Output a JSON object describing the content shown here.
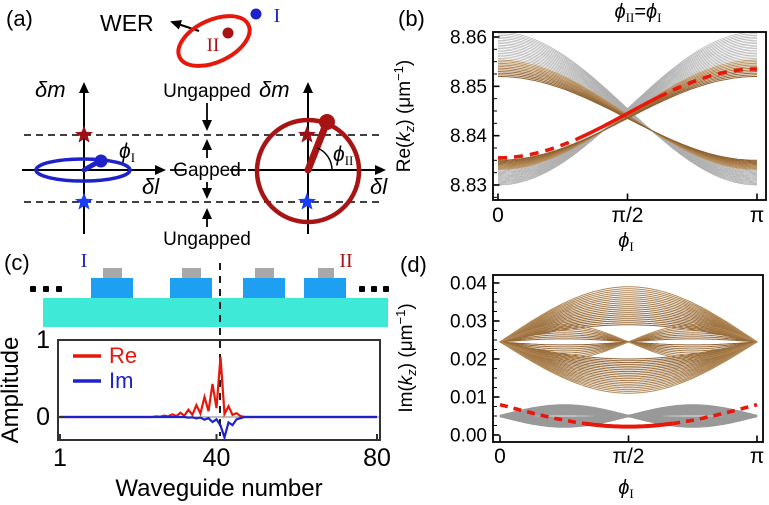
{
  "colors": {
    "blue": "#1e22cb",
    "star_blue": "#1a3dfc",
    "dark_red": "#a81414",
    "star_red": "#9c1016",
    "bright_red": "#e7170c",
    "brown": "#8d5f2e",
    "brown_light": "#c09a68",
    "gray_line": "#aeaeae",
    "gray_band": "#999999",
    "slab": "#3fe9d7",
    "waveguide": "#1e9ff2",
    "cap": "#a8a8a8",
    "axis": "#000000"
  },
  "panel_a": {
    "tag": "(a)",
    "wer": "WER",
    "dot_I": "I",
    "dot_II": "II",
    "left": {
      "axis_y": "δm",
      "axis_x": "δl",
      "phi": "ϕ",
      "phi_sub": "I"
    },
    "right": {
      "axis_y": "δm",
      "axis_x": "δl",
      "phi": "ϕ",
      "phi_sub": "II"
    },
    "region_top": "Ungapped",
    "region_mid": "Gapped",
    "region_bottom": "Ungapped"
  },
  "panel_b": {
    "tag": "(b)"
  },
  "panel_c": {
    "tag": "(c)",
    "label_I": "I",
    "label_II": "II"
  },
  "panel_d": {
    "tag": "(d)"
  },
  "chart_data": [
    {
      "id": "b",
      "type": "line",
      "title": {
        "phi_a": "ϕ",
        "sub_a": "II",
        "eq": "=",
        "phi_b": "ϕ",
        "sub_b": "I"
      },
      "xlabel": {
        "phi": "ϕ",
        "sub": "I"
      },
      "ylabel": {
        "p1": "Re(",
        "k": "k",
        "sub": "z",
        "p2": ") (μm",
        "sup": "−1",
        "p3": ")"
      },
      "ylim": [
        8.827,
        8.861
      ],
      "xlim_units_of_pi": [
        0,
        1
      ],
      "xticks": [
        {
          "t": 0,
          "label": "0"
        },
        {
          "t": 0.5,
          "label": "π/2"
        },
        {
          "t": 1,
          "label": "π"
        }
      ],
      "yticks": [
        {
          "v": 8.83,
          "label": "8.83"
        },
        {
          "v": 8.84,
          "label": "8.84"
        },
        {
          "v": 8.85,
          "label": "8.85"
        },
        {
          "v": 8.86,
          "label": "8.86"
        }
      ],
      "minor_tick_step": 0.0025,
      "bulk_bands": {
        "count_per_branch": 28,
        "crossing": 8.8445,
        "amp_min": 0.0085,
        "amp_max": 0.0155,
        "mid_spread": 0.002,
        "brown_fraction": 0.4,
        "upper_branch_start_range": [
          8.853,
          8.86
        ],
        "upper_branch_end_range": [
          8.829,
          8.836
        ]
      },
      "edge_state": {
        "center": 8.8445,
        "amp": 0.009,
        "start_value": 8.8355,
        "mid_value": 8.8445,
        "end_value": 8.8535,
        "solid_t": [
          0.3,
          0.62
        ]
      }
    },
    {
      "id": "d",
      "type": "line",
      "xlabel": {
        "phi": "ϕ",
        "sub": "I"
      },
      "ylabel": {
        "p1": "Im(",
        "k": "k",
        "sub": "z",
        "p2": ") (μm",
        "sup": "−1",
        "p3": ")"
      },
      "ylim": [
        0,
        0.044
      ],
      "xlim_units_of_pi": [
        0,
        1
      ],
      "xticks": [
        {
          "t": 0,
          "label": "0"
        },
        {
          "t": 0.5,
          "label": "π/2"
        },
        {
          "t": 1,
          "label": "π"
        }
      ],
      "yticks": [
        {
          "v": 0,
          "label": "0.00"
        },
        {
          "v": 0.01,
          "label": "0.01"
        },
        {
          "v": 0.02,
          "label": "0.02"
        },
        {
          "v": 0.03,
          "label": "0.03"
        },
        {
          "v": 0.04,
          "label": "0.04"
        }
      ],
      "minor_tick_step": 0.0025,
      "band_families": [
        {
          "shape": "sin",
          "center": 0.0245,
          "sign": 1,
          "amp_min": 0.0045,
          "amp_max": 0.0145,
          "count": 20,
          "color": "brown"
        },
        {
          "shape": "sin",
          "center": 0.0245,
          "sign": -1,
          "amp_min": 0.0045,
          "amp_max": 0.0135,
          "count": 20,
          "color": "brown"
        },
        {
          "shape": "abs_sin2",
          "center": 0.0245,
          "sign": 1,
          "amp_min": 0.0008,
          "amp_max": 0.0045,
          "count": 8,
          "color": "brown"
        },
        {
          "shape": "abs_sin2",
          "center": 0.0245,
          "sign": -1,
          "amp_min": 0.0008,
          "amp_max": 0.0045,
          "count": 8,
          "color": "brown"
        },
        {
          "shape": "abs_sin2",
          "center": 0.005,
          "sign": 1,
          "amp_min": 0.0004,
          "amp_max": 0.0028,
          "count": 7,
          "color": "gray"
        },
        {
          "shape": "abs_sin2",
          "center": 0.005,
          "sign": -1,
          "amp_min": 0.0004,
          "amp_max": 0.0028,
          "count": 7,
          "color": "gray"
        }
      ],
      "edge_state": {
        "base": 0.008,
        "dip": 0.0058,
        "min_value": 0.0022,
        "solid_t": [
          0.33,
          0.67
        ]
      }
    },
    {
      "id": "c",
      "type": "line",
      "xlabel": "Waveguide number",
      "ylabel": "Amplitude",
      "xlim": [
        1,
        80
      ],
      "ylim": [
        -0.3,
        1
      ],
      "xticks": [
        {
          "v": 1,
          "label": "1"
        },
        {
          "v": 40,
          "label": "40"
        },
        {
          "v": 80,
          "label": "80"
        }
      ],
      "yticks": [
        {
          "v": 0,
          "label": "0"
        },
        {
          "v": 1,
          "label": "1"
        }
      ],
      "marker_line_waveguide": 41,
      "series": [
        {
          "name": "Re",
          "color_key": "bright_red",
          "points": [
            [
              25,
              0.008
            ],
            [
              26,
              0.004
            ],
            [
              27,
              0.018
            ],
            [
              28,
              0.008
            ],
            [
              29,
              0.035
            ],
            [
              30,
              0.012
            ],
            [
              31,
              0.055
            ],
            [
              32,
              0.018
            ],
            [
              33,
              0.095
            ],
            [
              34,
              0.028
            ],
            [
              35,
              0.155
            ],
            [
              36,
              0.045
            ],
            [
              37,
              0.26
            ],
            [
              38,
              0.075
            ],
            [
              39,
              0.43
            ],
            [
              40,
              0.115
            ],
            [
              41,
              0.78
            ],
            [
              42,
              0.04
            ],
            [
              43,
              0.14
            ],
            [
              44,
              0.028
            ],
            [
              45,
              0.05
            ],
            [
              46,
              0.012
            ]
          ]
        },
        {
          "name": "Im",
          "color_key": "blue",
          "points": [
            [
              33,
              -0.008
            ],
            [
              34,
              -0.004
            ],
            [
              35,
              -0.018
            ],
            [
              36,
              -0.008
            ],
            [
              37,
              -0.035
            ],
            [
              38,
              -0.015
            ],
            [
              39,
              -0.065
            ],
            [
              40,
              -0.03
            ],
            [
              41,
              -0.11
            ],
            [
              42,
              -0.265
            ],
            [
              43,
              -0.07
            ],
            [
              44,
              -0.105
            ],
            [
              45,
              -0.03
            ],
            [
              46,
              -0.015
            ]
          ]
        }
      ]
    }
  ]
}
